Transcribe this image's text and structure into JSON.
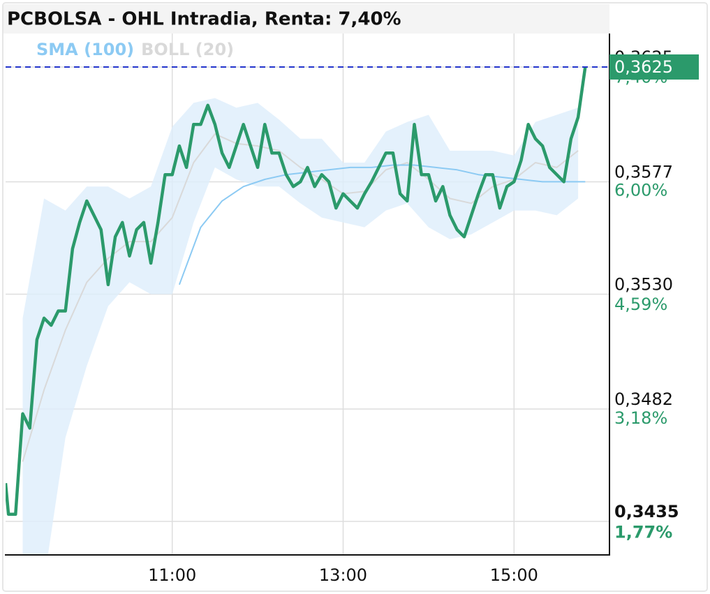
{
  "chart_data": {
    "type": "line",
    "title": "PCBOLSA - OHL Intradia, Renta: 7,40%",
    "x": [
      543,
      545,
      550,
      555,
      560,
      565,
      570,
      575,
      580,
      585,
      590,
      595,
      600,
      605,
      610,
      615,
      620,
      625,
      630,
      635,
      640,
      645,
      650,
      655,
      660,
      665,
      670,
      675,
      680,
      685,
      690,
      695,
      700,
      705,
      710,
      715,
      720,
      725,
      730,
      735,
      740,
      745,
      750,
      755,
      760,
      765,
      770,
      775,
      780,
      785,
      790,
      795,
      800,
      805,
      810,
      815,
      820,
      825,
      830,
      835,
      840,
      845,
      850,
      855,
      860,
      865,
      870,
      875,
      880,
      885,
      890,
      895,
      900,
      905,
      910,
      915,
      920,
      925,
      930,
      935,
      940,
      945,
      950
    ],
    "series": [
      {
        "color": "#2b9a6b",
        "values": [
          0.3451,
          0.3438,
          0.3438,
          0.348,
          0.3474,
          0.3511,
          0.352,
          0.3517,
          0.3523,
          0.3523,
          0.3549,
          0.356,
          0.3569,
          0.3563,
          0.3557,
          0.3534,
          0.3554,
          0.356,
          0.3546,
          0.3557,
          0.356,
          0.3543,
          0.356,
          0.358,
          0.358,
          0.3592,
          0.3583,
          0.3601,
          0.3601,
          0.3609,
          0.3601,
          0.3589,
          0.3583,
          0.3592,
          0.3601,
          0.3592,
          0.3583,
          0.3601,
          0.3589,
          0.3589,
          0.358,
          0.3575,
          0.3577,
          0.3583,
          0.3575,
          0.358,
          0.3577,
          0.3566,
          0.3572,
          0.3569,
          0.3566,
          0.3572,
          0.3577,
          0.3583,
          0.3589,
          0.3589,
          0.3572,
          0.3569,
          0.3601,
          0.358,
          0.358,
          0.3569,
          0.3575,
          0.3563,
          0.3557,
          0.3554,
          0.3563,
          0.3572,
          0.358,
          0.358,
          0.3566,
          0.3575,
          0.3577,
          0.3586,
          0.3601,
          0.3595,
          0.3592,
          0.3583,
          0.358,
          0.3577,
          0.3595,
          0.3604,
          0.3625
        ]
      },
      {
        "name": "SMA (100)",
        "color": "#8ccaf3",
        "x": [
          665,
          680,
          695,
          710,
          725,
          740,
          755,
          770,
          785,
          800,
          815,
          830,
          845,
          860,
          875,
          890,
          905,
          920,
          935,
          950
        ],
        "values": [
          0.3534,
          0.3558,
          0.3569,
          0.3575,
          0.3578,
          0.358,
          0.3581,
          0.3582,
          0.3583,
          0.3583,
          0.3584,
          0.3584,
          0.3583,
          0.3582,
          0.358,
          0.3579,
          0.3578,
          0.3577,
          0.3577,
          0.3577
        ]
      },
      {
        "name": "BOLL (20)",
        "color": "#d9d9d9",
        "band_color": "#ddeefb",
        "x": [
          555,
          570,
          585,
          600,
          615,
          630,
          645,
          660,
          675,
          690,
          705,
          720,
          735,
          750,
          765,
          780,
          795,
          810,
          825,
          840,
          855,
          870,
          885,
          900,
          915,
          930,
          945
        ],
        "values": [
          0.346,
          0.349,
          0.3515,
          0.3535,
          0.3545,
          0.3552,
          0.3552,
          0.3562,
          0.3585,
          0.3597,
          0.3593,
          0.3592,
          0.359,
          0.3583,
          0.3578,
          0.3572,
          0.3573,
          0.3582,
          0.3585,
          0.3578,
          0.357,
          0.3568,
          0.3575,
          0.3578,
          0.3585,
          0.3583,
          0.359
        ],
        "upper": [
          0.352,
          0.357,
          0.3565,
          0.3575,
          0.3575,
          0.357,
          0.3575,
          0.36,
          0.361,
          0.3612,
          0.3608,
          0.361,
          0.3603,
          0.3595,
          0.3595,
          0.3585,
          0.3585,
          0.3598,
          0.3602,
          0.3605,
          0.359,
          0.359,
          0.359,
          0.3588,
          0.3602,
          0.3605,
          0.3608
        ],
        "lower": [
          0.34,
          0.341,
          0.347,
          0.35,
          0.3525,
          0.3535,
          0.353,
          0.353,
          0.356,
          0.3583,
          0.3578,
          0.3575,
          0.3575,
          0.3568,
          0.3562,
          0.356,
          0.3558,
          0.3565,
          0.3568,
          0.3558,
          0.3553,
          0.3555,
          0.356,
          0.3565,
          0.3565,
          0.3563,
          0.357
        ]
      }
    ],
    "xlim": [
      543,
      967
    ],
    "xticks": [
      {
        "value": 660,
        "label": "11:00"
      },
      {
        "value": 780,
        "label": "13:00"
      },
      {
        "value": 900,
        "label": "15:00"
      }
    ],
    "ylim": [
      0.3421,
      0.3639
    ],
    "yticks": [
      {
        "value": 0.3435,
        "label": "0,3435"
      },
      {
        "value": 0.3482,
        "label": "0,3482"
      },
      {
        "value": 0.353,
        "label": "0,3530"
      },
      {
        "value": 0.3577,
        "label": "0,3577"
      },
      {
        "value": 0.3625,
        "label": "0,3625"
      }
    ],
    "y2lim": [
      1.36,
      7.81
    ],
    "y2ticks": [
      {
        "value": 1.77,
        "label": "1,77%"
      },
      {
        "value": 3.18,
        "label": "3,18%"
      },
      {
        "value": 4.59,
        "label": "4,59%"
      },
      {
        "value": 6.0,
        "label": "6,00%"
      },
      {
        "value": 7.4,
        "label": "7,40%"
      }
    ],
    "last": {
      "value": 0.3625,
      "label": "0,3625",
      "color": "#2b9a6b"
    },
    "grid": true
  }
}
